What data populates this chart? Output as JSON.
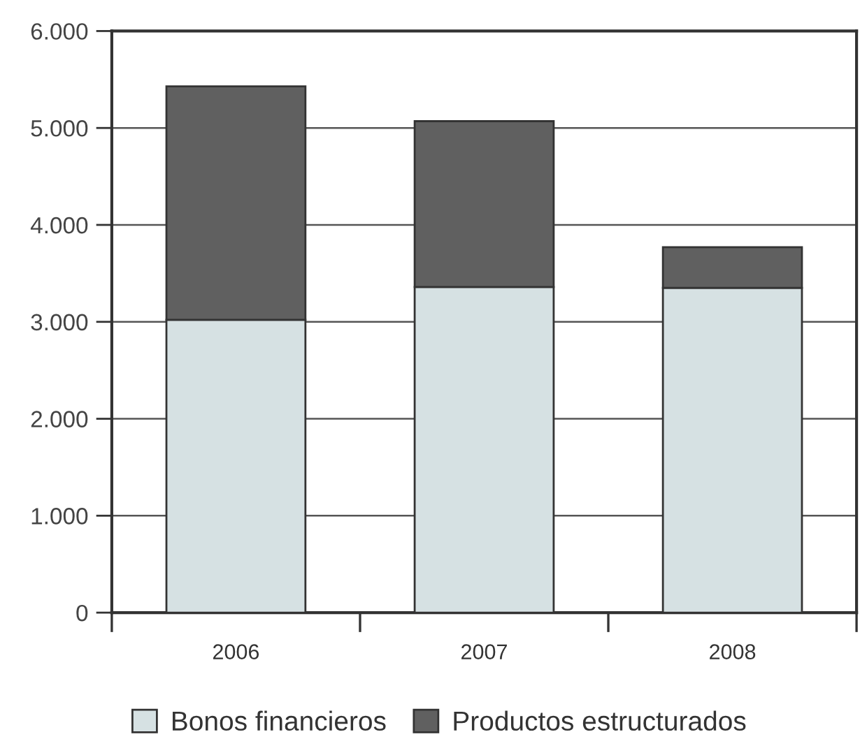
{
  "chart_data": {
    "type": "bar",
    "stacked": true,
    "categories": [
      "2006",
      "2007",
      "2008"
    ],
    "series": [
      {
        "name": "Bonos financieros",
        "color": "#d6e1e3",
        "values": [
          3020,
          3360,
          3350
        ]
      },
      {
        "name": "Productos estructurados",
        "color": "#606060",
        "values": [
          2410,
          1710,
          420
        ]
      }
    ],
    "ylim": [
      0,
      6000
    ],
    "yticks": [
      0,
      {
        "value": 1000,
        "label": "1.000"
      },
      {
        "value": 2000,
        "label": "2.000"
      },
      {
        "value": 3000,
        "label": "3.000"
      },
      {
        "value": 4000,
        "label": "4.000"
      },
      {
        "value": 5000,
        "label": "5.000"
      },
      {
        "value": 6000,
        "label": "6.000"
      }
    ],
    "grid": "y",
    "legend": "bottom"
  }
}
